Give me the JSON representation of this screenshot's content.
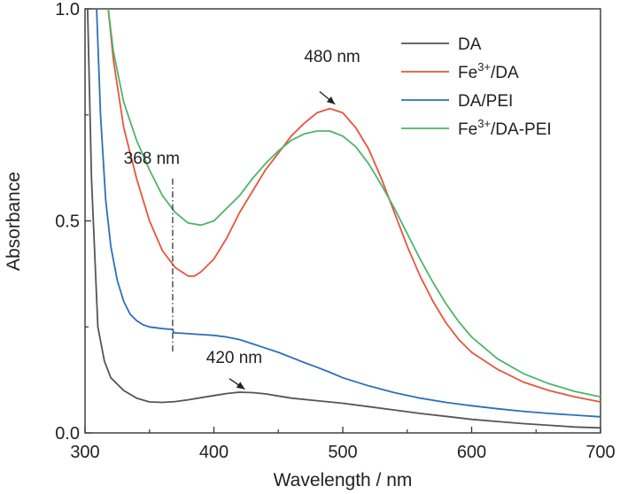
{
  "chart_data": {
    "type": "line",
    "xlabel": "Wavelength / nm",
    "ylabel": "Absorbance",
    "xlim": [
      300,
      700
    ],
    "ylim": [
      0,
      1.0
    ],
    "x_ticks": [
      300,
      400,
      500,
      600,
      700
    ],
    "y_ticks": [
      0,
      0.5,
      1.0
    ],
    "x_tick_labels": [
      "300",
      "400",
      "500",
      "600",
      "700"
    ],
    "y_tick_labels": [
      "0.0",
      "0.5",
      "1.0"
    ],
    "grid": false,
    "legend_position": "top-right",
    "series": [
      {
        "name": "DA",
        "legend_main": "DA",
        "legend_sup": "",
        "legend_rest": "",
        "color": "#555555",
        "points": [
          [
            302,
            1.0
          ],
          [
            305,
            0.6
          ],
          [
            310,
            0.25
          ],
          [
            315,
            0.17
          ],
          [
            320,
            0.13
          ],
          [
            330,
            0.1
          ],
          [
            340,
            0.082
          ],
          [
            350,
            0.073
          ],
          [
            360,
            0.072
          ],
          [
            370,
            0.074
          ],
          [
            380,
            0.078
          ],
          [
            390,
            0.083
          ],
          [
            400,
            0.088
          ],
          [
            410,
            0.093
          ],
          [
            420,
            0.096
          ],
          [
            430,
            0.095
          ],
          [
            440,
            0.092
          ],
          [
            450,
            0.087
          ],
          [
            460,
            0.082
          ],
          [
            480,
            0.076
          ],
          [
            500,
            0.07
          ],
          [
            520,
            0.062
          ],
          [
            540,
            0.054
          ],
          [
            560,
            0.046
          ],
          [
            580,
            0.039
          ],
          [
            600,
            0.032
          ],
          [
            620,
            0.027
          ],
          [
            640,
            0.022
          ],
          [
            660,
            0.018
          ],
          [
            680,
            0.014
          ],
          [
            700,
            0.012
          ]
        ]
      },
      {
        "name": "Fe3+/DA",
        "legend_main": "Fe",
        "legend_sup": "3+",
        "legend_rest": "/DA",
        "color": "#e8553c",
        "points": [
          [
            318,
            1.0
          ],
          [
            322,
            0.88
          ],
          [
            330,
            0.72
          ],
          [
            340,
            0.6
          ],
          [
            350,
            0.5
          ],
          [
            360,
            0.43
          ],
          [
            370,
            0.39
          ],
          [
            380,
            0.37
          ],
          [
            385,
            0.37
          ],
          [
            390,
            0.38
          ],
          [
            400,
            0.41
          ],
          [
            410,
            0.46
          ],
          [
            420,
            0.52
          ],
          [
            430,
            0.57
          ],
          [
            440,
            0.62
          ],
          [
            450,
            0.66
          ],
          [
            460,
            0.7
          ],
          [
            470,
            0.73
          ],
          [
            480,
            0.755
          ],
          [
            490,
            0.765
          ],
          [
            500,
            0.755
          ],
          [
            510,
            0.72
          ],
          [
            520,
            0.67
          ],
          [
            530,
            0.6
          ],
          [
            540,
            0.52
          ],
          [
            550,
            0.44
          ],
          [
            560,
            0.37
          ],
          [
            570,
            0.31
          ],
          [
            580,
            0.26
          ],
          [
            590,
            0.22
          ],
          [
            600,
            0.19
          ],
          [
            620,
            0.15
          ],
          [
            640,
            0.12
          ],
          [
            660,
            0.1
          ],
          [
            680,
            0.085
          ],
          [
            700,
            0.073
          ]
        ]
      },
      {
        "name": "DA/PEI",
        "legend_main": "DA/PEI",
        "legend_sup": "",
        "legend_rest": "",
        "color": "#2c6fbb",
        "points": [
          [
            309,
            1.0
          ],
          [
            312,
            0.75
          ],
          [
            316,
            0.55
          ],
          [
            320,
            0.44
          ],
          [
            325,
            0.36
          ],
          [
            330,
            0.31
          ],
          [
            335,
            0.28
          ],
          [
            340,
            0.265
          ],
          [
            345,
            0.255
          ],
          [
            350,
            0.25
          ],
          [
            360,
            0.246
          ],
          [
            368,
            0.244
          ],
          [
            369,
            0.236
          ],
          [
            375,
            0.235
          ],
          [
            380,
            0.234
          ],
          [
            390,
            0.232
          ],
          [
            400,
            0.23
          ],
          [
            410,
            0.226
          ],
          [
            420,
            0.22
          ],
          [
            430,
            0.21
          ],
          [
            440,
            0.2
          ],
          [
            450,
            0.19
          ],
          [
            460,
            0.178
          ],
          [
            470,
            0.166
          ],
          [
            480,
            0.155
          ],
          [
            490,
            0.143
          ],
          [
            500,
            0.13
          ],
          [
            520,
            0.111
          ],
          [
            540,
            0.095
          ],
          [
            560,
            0.082
          ],
          [
            580,
            0.072
          ],
          [
            600,
            0.064
          ],
          [
            620,
            0.057
          ],
          [
            640,
            0.051
          ],
          [
            660,
            0.046
          ],
          [
            680,
            0.042
          ],
          [
            700,
            0.038
          ]
        ]
      },
      {
        "name": "Fe3+/DA-PEI",
        "legend_main": "Fe",
        "legend_sup": "3+",
        "legend_rest": "/DA-PEI",
        "color": "#4db56a",
        "points": [
          [
            318,
            1.0
          ],
          [
            322,
            0.9
          ],
          [
            330,
            0.78
          ],
          [
            340,
            0.69
          ],
          [
            350,
            0.62
          ],
          [
            360,
            0.56
          ],
          [
            370,
            0.52
          ],
          [
            380,
            0.495
          ],
          [
            390,
            0.49
          ],
          [
            400,
            0.5
          ],
          [
            410,
            0.53
          ],
          [
            420,
            0.56
          ],
          [
            430,
            0.6
          ],
          [
            440,
            0.635
          ],
          [
            450,
            0.665
          ],
          [
            460,
            0.69
          ],
          [
            470,
            0.705
          ],
          [
            480,
            0.712
          ],
          [
            490,
            0.712
          ],
          [
            500,
            0.7
          ],
          [
            510,
            0.675
          ],
          [
            520,
            0.635
          ],
          [
            530,
            0.585
          ],
          [
            540,
            0.53
          ],
          [
            550,
            0.47
          ],
          [
            560,
            0.41
          ],
          [
            570,
            0.355
          ],
          [
            580,
            0.305
          ],
          [
            590,
            0.262
          ],
          [
            600,
            0.226
          ],
          [
            620,
            0.175
          ],
          [
            640,
            0.14
          ],
          [
            660,
            0.116
          ],
          [
            680,
            0.098
          ],
          [
            700,
            0.085
          ]
        ]
      }
    ],
    "annotations": [
      {
        "text": "480 nm",
        "x": 470,
        "y": 0.875,
        "arrow_from": [
          482,
          0.805
        ],
        "arrow_to": [
          494,
          0.775
        ]
      },
      {
        "text": "368 nm",
        "x": 330,
        "y": 0.635
      },
      {
        "text": "420 nm",
        "x": 394,
        "y": 0.165,
        "arrow_from": [
          412,
          0.128
        ],
        "arrow_to": [
          424,
          0.103
        ]
      }
    ],
    "marker_line": {
      "x": 368,
      "y_from": 0.6,
      "y_to": 0.19
    }
  }
}
